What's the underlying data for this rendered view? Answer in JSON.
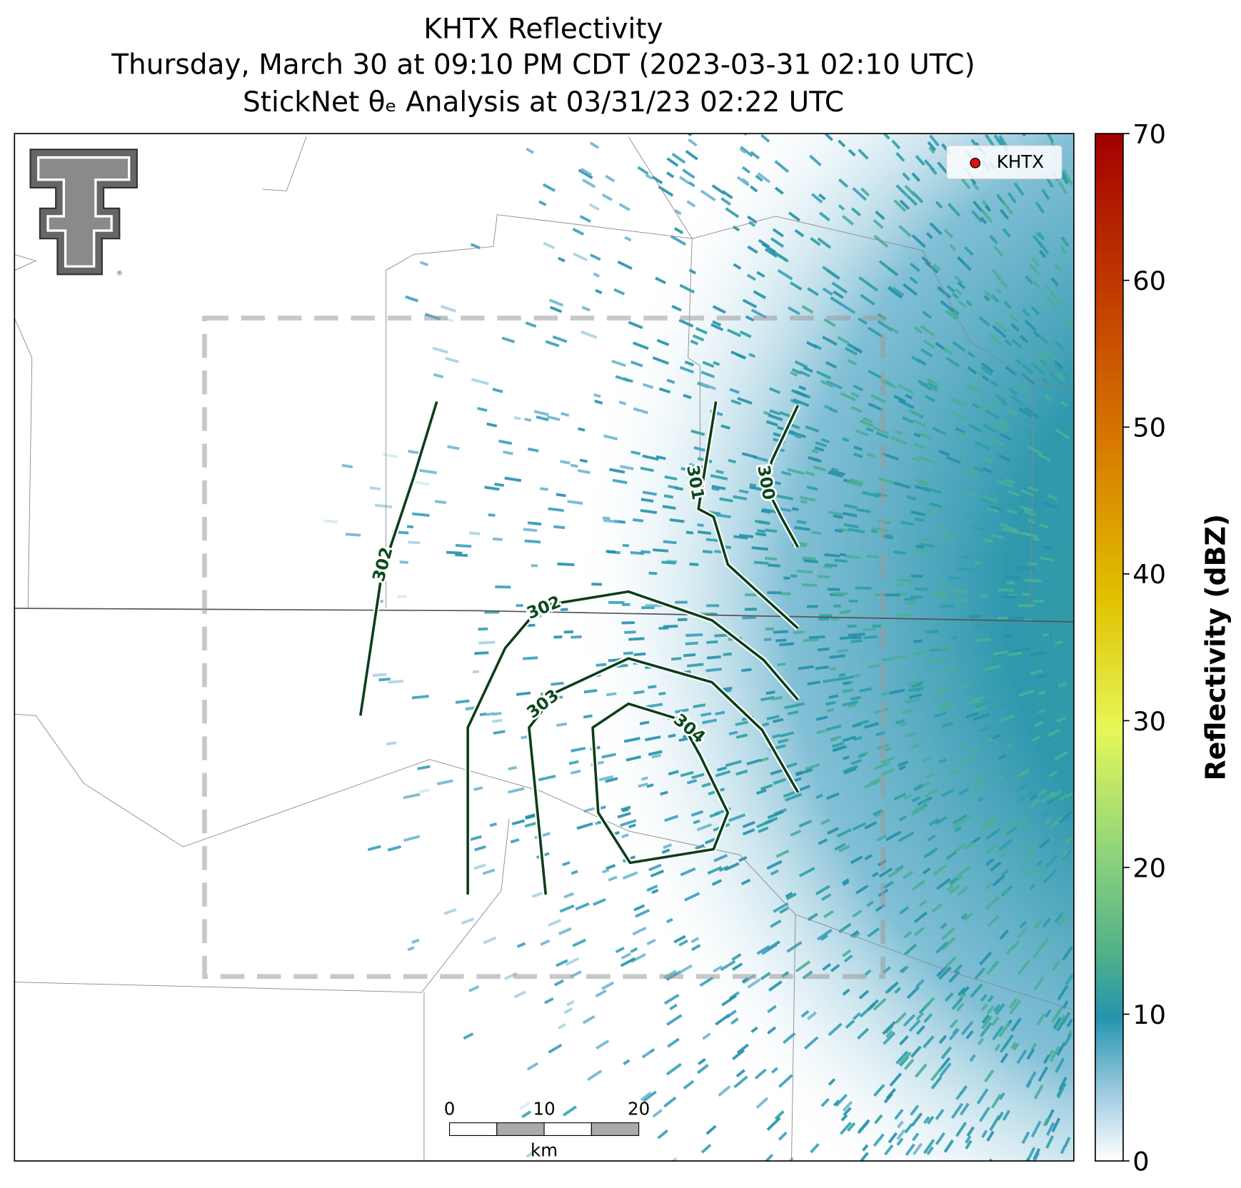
{
  "title": [
    "KHTX Reflectivity",
    "Thursday, March 30 at 09:10 PM CDT (2023-03-31 02:10 UTC)",
    "StickNet θₑ Analysis at 03/31/23 02:22 UTC"
  ],
  "legend": {
    "label": "KHTX"
  },
  "colorbar": {
    "label": "Reflectivity (dBZ)",
    "lim": [
      0,
      70
    ],
    "ticks": [
      0,
      10,
      20,
      30,
      40,
      50,
      60,
      70
    ]
  },
  "contours": [
    {
      "label": 302
    },
    {
      "label": 302
    },
    {
      "label": 303
    },
    {
      "label": 304
    },
    {
      "label": 301
    },
    {
      "label": 300
    }
  ],
  "scalebar": {
    "ticks": [
      0,
      10,
      20
    ],
    "unit": "km"
  },
  "logo": {
    "mark": "®"
  }
}
